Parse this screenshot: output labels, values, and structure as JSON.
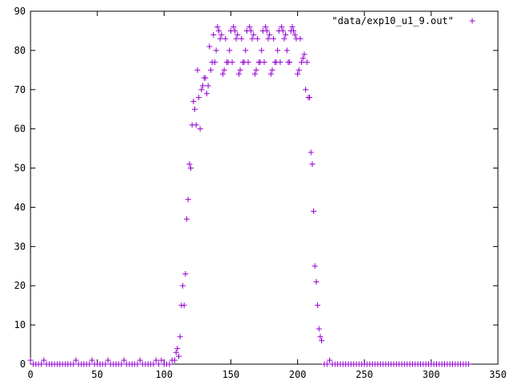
{
  "chart_data": {
    "type": "scatter",
    "title": "",
    "xlabel": "",
    "ylabel": "",
    "xlim": [
      0,
      350
    ],
    "ylim": [
      0,
      90
    ],
    "xticks": [
      0,
      50,
      100,
      150,
      200,
      250,
      300,
      350
    ],
    "yticks": [
      0,
      10,
      20,
      30,
      40,
      50,
      60,
      70,
      80,
      90
    ],
    "grid": false,
    "legend_position": "top-right",
    "marker": "plus",
    "series": [
      {
        "name": "\"data/exp10_u1_9.out\"",
        "color": "#9400d3",
        "points": [
          [
            0,
            1
          ],
          [
            2,
            0
          ],
          [
            4,
            0
          ],
          [
            6,
            0
          ],
          [
            8,
            0
          ],
          [
            10,
            1
          ],
          [
            12,
            0
          ],
          [
            14,
            0
          ],
          [
            16,
            0
          ],
          [
            18,
            0
          ],
          [
            20,
            0
          ],
          [
            22,
            0
          ],
          [
            24,
            0
          ],
          [
            26,
            0
          ],
          [
            28,
            0
          ],
          [
            30,
            0
          ],
          [
            32,
            0
          ],
          [
            34,
            1
          ],
          [
            36,
            0
          ],
          [
            38,
            0
          ],
          [
            40,
            0
          ],
          [
            42,
            0
          ],
          [
            44,
            0
          ],
          [
            46,
            1
          ],
          [
            48,
            0
          ],
          [
            50,
            0
          ],
          [
            52,
            0
          ],
          [
            54,
            0
          ],
          [
            56,
            0
          ],
          [
            58,
            1
          ],
          [
            60,
            0
          ],
          [
            62,
            0
          ],
          [
            64,
            0
          ],
          [
            66,
            0
          ],
          [
            68,
            0
          ],
          [
            70,
            1
          ],
          [
            72,
            0
          ],
          [
            74,
            0
          ],
          [
            76,
            0
          ],
          [
            78,
            0
          ],
          [
            80,
            0
          ],
          [
            82,
            1
          ],
          [
            84,
            0
          ],
          [
            86,
            0
          ],
          [
            88,
            0
          ],
          [
            90,
            0
          ],
          [
            92,
            0
          ],
          [
            94,
            1
          ],
          [
            96,
            0
          ],
          [
            98,
            1
          ],
          [
            100,
            0
          ],
          [
            102,
            0
          ],
          [
            104,
            0
          ],
          [
            106,
            1
          ],
          [
            108,
            1
          ],
          [
            109,
            3
          ],
          [
            110,
            4
          ],
          [
            111,
            2
          ],
          [
            112,
            7
          ],
          [
            113,
            15
          ],
          [
            114,
            20
          ],
          [
            115,
            15
          ],
          [
            116,
            23
          ],
          [
            117,
            37
          ],
          [
            118,
            42
          ],
          [
            119,
            51
          ],
          [
            120,
            50
          ],
          [
            121,
            61
          ],
          [
            122,
            67
          ],
          [
            123,
            65
          ],
          [
            124,
            61
          ],
          [
            125,
            75
          ],
          [
            126,
            68
          ],
          [
            127,
            60
          ],
          [
            128,
            70
          ],
          [
            129,
            71
          ],
          [
            130,
            73
          ],
          [
            131,
            73
          ],
          [
            132,
            69
          ],
          [
            133,
            71
          ],
          [
            134,
            81
          ],
          [
            135,
            75
          ],
          [
            136,
            77
          ],
          [
            137,
            84
          ],
          [
            138,
            77
          ],
          [
            139,
            80
          ],
          [
            140,
            86
          ],
          [
            141,
            85
          ],
          [
            142,
            83
          ],
          [
            143,
            84
          ],
          [
            144,
            74
          ],
          [
            145,
            75
          ],
          [
            146,
            83
          ],
          [
            147,
            77
          ],
          [
            148,
            77
          ],
          [
            149,
            80
          ],
          [
            150,
            85
          ],
          [
            151,
            77
          ],
          [
            152,
            86
          ],
          [
            153,
            85
          ],
          [
            154,
            83
          ],
          [
            155,
            84
          ],
          [
            156,
            74
          ],
          [
            157,
            75
          ],
          [
            158,
            83
          ],
          [
            159,
            77
          ],
          [
            160,
            77
          ],
          [
            161,
            80
          ],
          [
            162,
            85
          ],
          [
            163,
            77
          ],
          [
            164,
            86
          ],
          [
            165,
            85
          ],
          [
            166,
            83
          ],
          [
            167,
            84
          ],
          [
            168,
            74
          ],
          [
            169,
            75
          ],
          [
            170,
            83
          ],
          [
            171,
            77
          ],
          [
            172,
            77
          ],
          [
            173,
            80
          ],
          [
            174,
            85
          ],
          [
            175,
            77
          ],
          [
            176,
            86
          ],
          [
            177,
            85
          ],
          [
            178,
            83
          ],
          [
            179,
            84
          ],
          [
            180,
            74
          ],
          [
            181,
            75
          ],
          [
            182,
            83
          ],
          [
            183,
            77
          ],
          [
            184,
            77
          ],
          [
            185,
            80
          ],
          [
            186,
            85
          ],
          [
            187,
            77
          ],
          [
            188,
            86
          ],
          [
            189,
            85
          ],
          [
            190,
            83
          ],
          [
            191,
            84
          ],
          [
            192,
            80
          ],
          [
            193,
            77
          ],
          [
            194,
            77
          ],
          [
            195,
            85
          ],
          [
            196,
            86
          ],
          [
            197,
            85
          ],
          [
            198,
            84
          ],
          [
            199,
            83
          ],
          [
            200,
            74
          ],
          [
            201,
            75
          ],
          [
            202,
            83
          ],
          [
            203,
            77
          ],
          [
            204,
            78
          ],
          [
            205,
            79
          ],
          [
            206,
            70
          ],
          [
            207,
            77
          ],
          [
            208,
            68
          ],
          [
            209,
            68
          ],
          [
            210,
            54
          ],
          [
            211,
            51
          ],
          [
            212,
            39
          ],
          [
            213,
            25
          ],
          [
            214,
            21
          ],
          [
            215,
            15
          ],
          [
            216,
            9
          ],
          [
            217,
            7
          ],
          [
            218,
            6
          ],
          [
            220,
            0
          ],
          [
            222,
            0
          ],
          [
            224,
            1
          ],
          [
            226,
            0
          ],
          [
            228,
            0
          ],
          [
            230,
            0
          ],
          [
            232,
            0
          ],
          [
            234,
            0
          ],
          [
            236,
            0
          ],
          [
            238,
            0
          ],
          [
            240,
            0
          ],
          [
            242,
            0
          ],
          [
            244,
            0
          ],
          [
            246,
            0
          ],
          [
            248,
            0
          ],
          [
            250,
            0
          ],
          [
            252,
            0
          ],
          [
            254,
            0
          ],
          [
            256,
            0
          ],
          [
            258,
            0
          ],
          [
            260,
            0
          ],
          [
            262,
            0
          ],
          [
            264,
            0
          ],
          [
            266,
            0
          ],
          [
            268,
            0
          ],
          [
            270,
            0
          ],
          [
            272,
            0
          ],
          [
            274,
            0
          ],
          [
            276,
            0
          ],
          [
            278,
            0
          ],
          [
            280,
            0
          ],
          [
            282,
            0
          ],
          [
            284,
            0
          ],
          [
            286,
            0
          ],
          [
            288,
            0
          ],
          [
            290,
            0
          ],
          [
            292,
            0
          ],
          [
            294,
            0
          ],
          [
            296,
            0
          ],
          [
            298,
            0
          ],
          [
            300,
            0
          ],
          [
            302,
            0
          ],
          [
            304,
            0
          ],
          [
            306,
            0
          ],
          [
            308,
            0
          ],
          [
            310,
            0
          ],
          [
            312,
            0
          ],
          [
            314,
            0
          ],
          [
            316,
            0
          ],
          [
            318,
            0
          ],
          [
            320,
            0
          ],
          [
            322,
            0
          ],
          [
            324,
            0
          ],
          [
            326,
            0
          ],
          [
            328,
            0
          ]
        ]
      }
    ]
  }
}
